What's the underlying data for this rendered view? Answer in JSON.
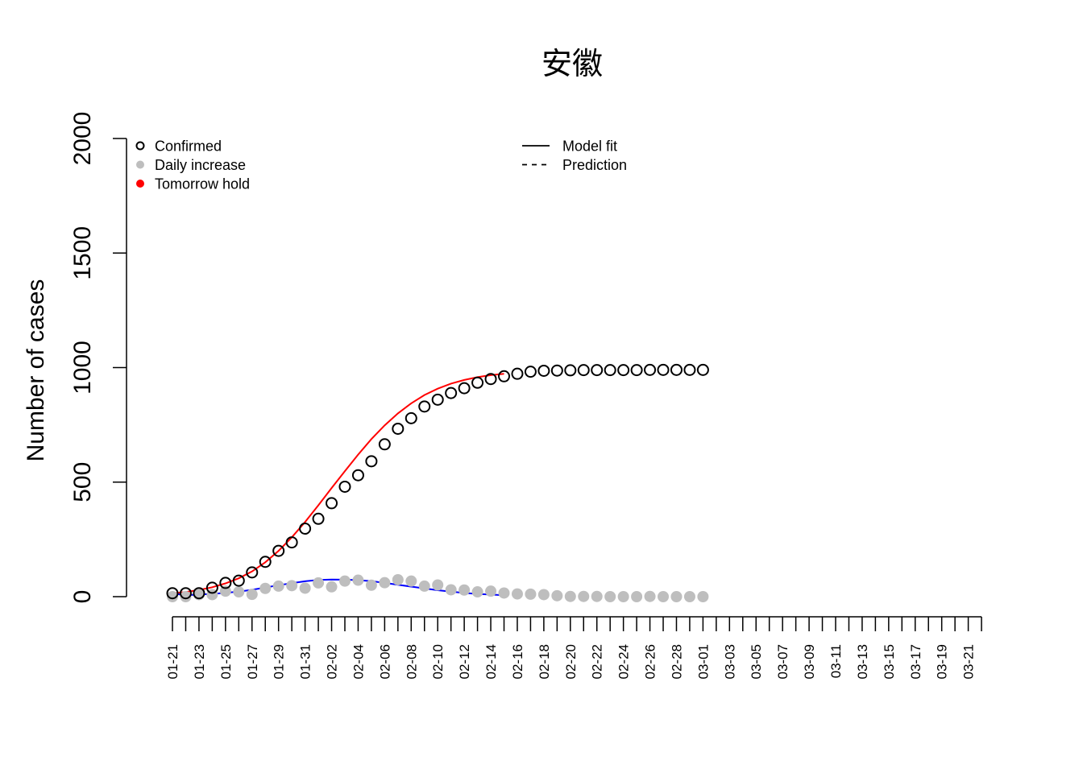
{
  "chart_data": {
    "type": "scatter",
    "title": "安徽",
    "xlabel": "",
    "ylabel": "Number of cases",
    "ylim": [
      0,
      2000
    ],
    "y_ticks": [
      0,
      500,
      1000,
      1500,
      2000
    ],
    "x_tick_labels": [
      "01-21",
      "01-23",
      "01-25",
      "01-27",
      "01-29",
      "01-31",
      "02-02",
      "02-04",
      "02-06",
      "02-08",
      "02-10",
      "02-12",
      "02-14",
      "02-16",
      "02-18",
      "02-20",
      "02-22",
      "02-24",
      "02-26",
      "02-28",
      "03-01",
      "03-03",
      "03-05",
      "03-07",
      "03-09",
      "03-11",
      "03-13",
      "03-15",
      "03-17",
      "03-19",
      "03-21"
    ],
    "x_tick_count": 62,
    "legend_left": {
      "position": "top-left",
      "items": [
        {
          "label": "Confirmed",
          "marker": "open-circle",
          "color": "#000000"
        },
        {
          "label": "Daily increase",
          "marker": "filled-circle",
          "color": "#bebebe"
        },
        {
          "label": "Tomorrow hold",
          "marker": "filled-circle",
          "color": "#ff0000"
        }
      ]
    },
    "legend_right": {
      "position": "top-center",
      "items": [
        {
          "label": "Model fit",
          "line": "solid",
          "color": "#000000"
        },
        {
          "label": "Prediction",
          "line": "dashed",
          "color": "#000000"
        }
      ]
    },
    "series": [
      {
        "name": "Confirmed",
        "style": "open-circle",
        "color": "#000000",
        "x_start": "01-21",
        "values": [
          15,
          15,
          15,
          39,
          60,
          70,
          106,
          152,
          200,
          237,
          297,
          340,
          408,
          480,
          530,
          591,
          665,
          733,
          779,
          830,
          860,
          889,
          910,
          934,
          950,
          962,
          973,
          982,
          986,
          987,
          988,
          989,
          989,
          989,
          989,
          989,
          990,
          990,
          990,
          990,
          990
        ]
      },
      {
        "name": "Daily increase",
        "style": "filled-circle",
        "color": "#bebebe",
        "x_start": "01-21",
        "values": [
          0,
          0,
          9,
          9,
          24,
          21,
          10,
          36,
          46,
          48,
          37,
          60,
          43,
          68,
          72,
          50,
          61,
          74,
          68,
          46,
          51,
          30,
          29,
          21,
          24,
          16,
          12,
          11,
          9,
          4,
          1,
          1,
          1,
          0,
          0,
          0,
          1,
          0,
          0,
          0,
          0
        ]
      },
      {
        "name": "Model fit (confirmed)",
        "style": "line",
        "color": "#ff0000",
        "x_start": "01-21",
        "values": [
          14,
          20,
          29,
          41,
          58,
          80,
          110,
          150,
          200,
          259,
          326,
          399,
          474,
          548,
          620,
          688,
          748,
          800,
          844,
          880,
          908,
          930,
          946,
          958,
          967,
          973
        ]
      },
      {
        "name": "Model fit (daily)",
        "style": "line",
        "color": "#0000ff",
        "x_start": "01-21",
        "values": [
          14,
          6,
          9,
          12,
          17,
          22,
          30,
          40,
          50,
          59,
          67,
          73,
          75,
          74,
          72,
          68,
          60,
          52,
          44,
          36,
          28,
          22,
          16,
          12,
          9,
          6
        ]
      }
    ]
  }
}
